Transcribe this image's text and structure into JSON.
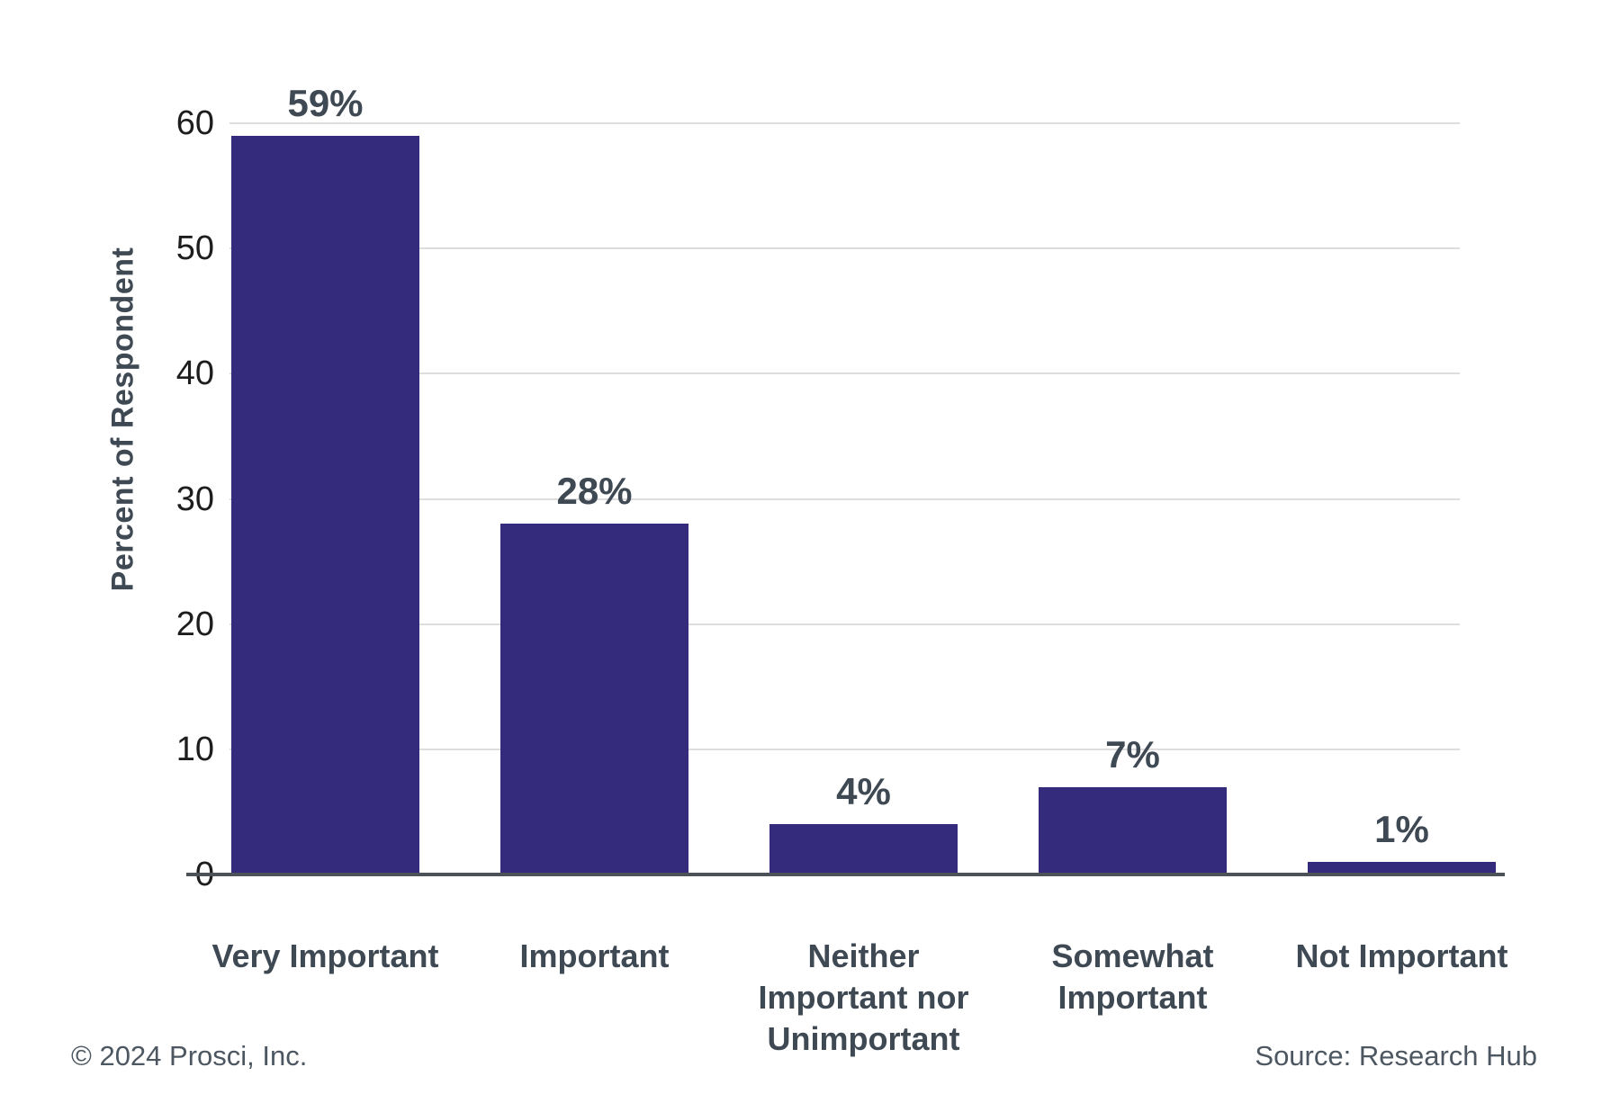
{
  "chart_data": {
    "type": "bar",
    "title": "",
    "xlabel": "",
    "ylabel": "Percent of Respondent",
    "categories": [
      "Very Important",
      "Important",
      "Neither Important nor Unimportant",
      "Somewhat Important",
      "Not Important"
    ],
    "category_lines": [
      [
        "Very Important"
      ],
      [
        "Important"
      ],
      [
        "Neither",
        "Important nor",
        "Unimportant"
      ],
      [
        "Somewhat",
        "Important"
      ],
      [
        "Not Important"
      ]
    ],
    "values": [
      59,
      28,
      4,
      7,
      1
    ],
    "value_labels": [
      "59%",
      "28%",
      "4%",
      "7%",
      "1%"
    ],
    "ylim": [
      0,
      60
    ],
    "yticks": [
      0,
      10,
      20,
      30,
      40,
      50,
      60
    ],
    "grid": "horizontal-light",
    "legend": "none",
    "colors": {
      "bar": "#342B7D",
      "data_label": "#3E4953",
      "category_label": "#3E4953",
      "tick_label": "#1D1D1D",
      "axis_line": "#4C5257",
      "gridline": "#DDDDDD",
      "footer_text": "#4D5761"
    }
  },
  "footer": {
    "copyright": "© 2024 Prosci, Inc.",
    "source": "Source: Research Hub"
  }
}
